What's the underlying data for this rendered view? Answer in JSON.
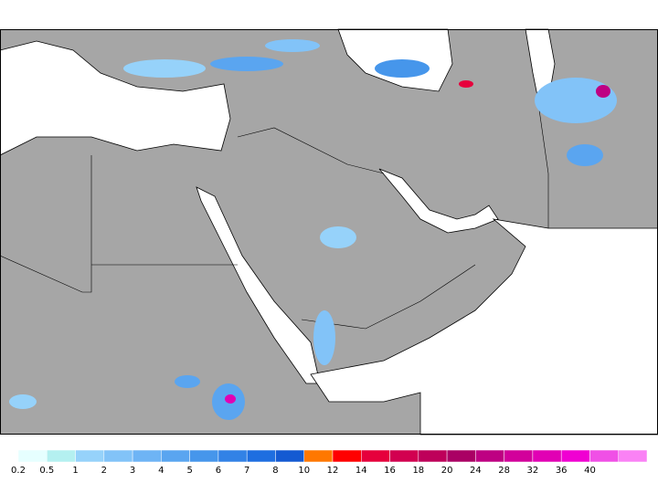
{
  "colorbar": {
    "ticks": [
      0.2,
      0.5,
      1,
      2,
      3,
      4,
      5,
      6,
      7,
      8,
      10,
      12,
      14,
      16,
      18,
      20,
      24,
      28,
      32,
      36,
      40
    ],
    "colors": [
      "#e6ffff",
      "#b4f0f0",
      "#96d2fa",
      "#82c3f8",
      "#6eb4f5",
      "#5aa5f0",
      "#4696eb",
      "#3282e6",
      "#1e6ee0",
      "#145ad2",
      "#ff7800",
      "#ff0000",
      "#e6003c",
      "#d20050",
      "#be005a",
      "#aa0064",
      "#be0082",
      "#d2009b",
      "#e100b4",
      "#f000d2",
      "#f050e6",
      "#fa82f5"
    ]
  }
}
